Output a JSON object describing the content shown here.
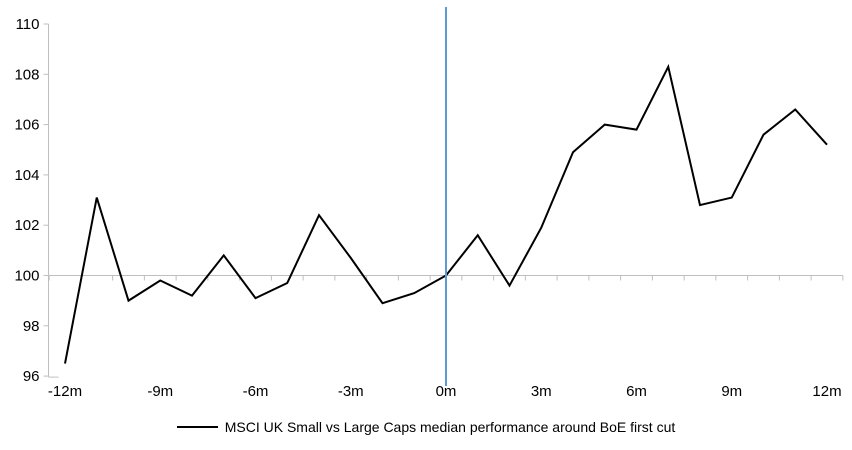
{
  "chart_data": {
    "type": "line",
    "title": "",
    "x_months": [
      -12,
      -11,
      -10,
      -9,
      -8,
      -7,
      -6,
      -5,
      -4,
      -3,
      -2,
      -1,
      0,
      1,
      2,
      3,
      4,
      5,
      6,
      7,
      8,
      9,
      10,
      11,
      12
    ],
    "series": [
      {
        "name": "MSCI UK Small vs Large Caps median performance around BoE first cut",
        "color": "#000000",
        "values": [
          96.5,
          103.1,
          99.0,
          99.8,
          99.2,
          100.8,
          99.1,
          99.7,
          102.4,
          100.7,
          98.9,
          99.3,
          100.0,
          101.6,
          99.6,
          101.9,
          104.9,
          106.0,
          105.8,
          108.3,
          102.8,
          103.1,
          105.6,
          106.6,
          105.2
        ]
      }
    ],
    "ylim": [
      96,
      110
    ],
    "xlim": [
      -12,
      12
    ],
    "y_ticks": [
      110,
      108,
      106,
      104,
      102,
      100,
      98,
      96
    ],
    "x_tick_months": [
      -12,
      -9,
      -6,
      -3,
      0,
      3,
      6,
      9,
      12
    ],
    "x_tick_labels": [
      "-12m",
      "-9m",
      "-6m",
      "-3m",
      "0m",
      "3m",
      "6m",
      "9m",
      "12m"
    ],
    "axis_crosses_at": 100,
    "event_line_month": 0,
    "grid": "off",
    "legend_position": "bottom",
    "colors": {
      "series_line": "#000000",
      "event_line": "#5B9BD5",
      "axis_line": "#BFBFBF",
      "tick_label": "#000000"
    }
  },
  "legend": {
    "label": "MSCI UK Small vs Large Caps median performance around BoE first cut"
  }
}
